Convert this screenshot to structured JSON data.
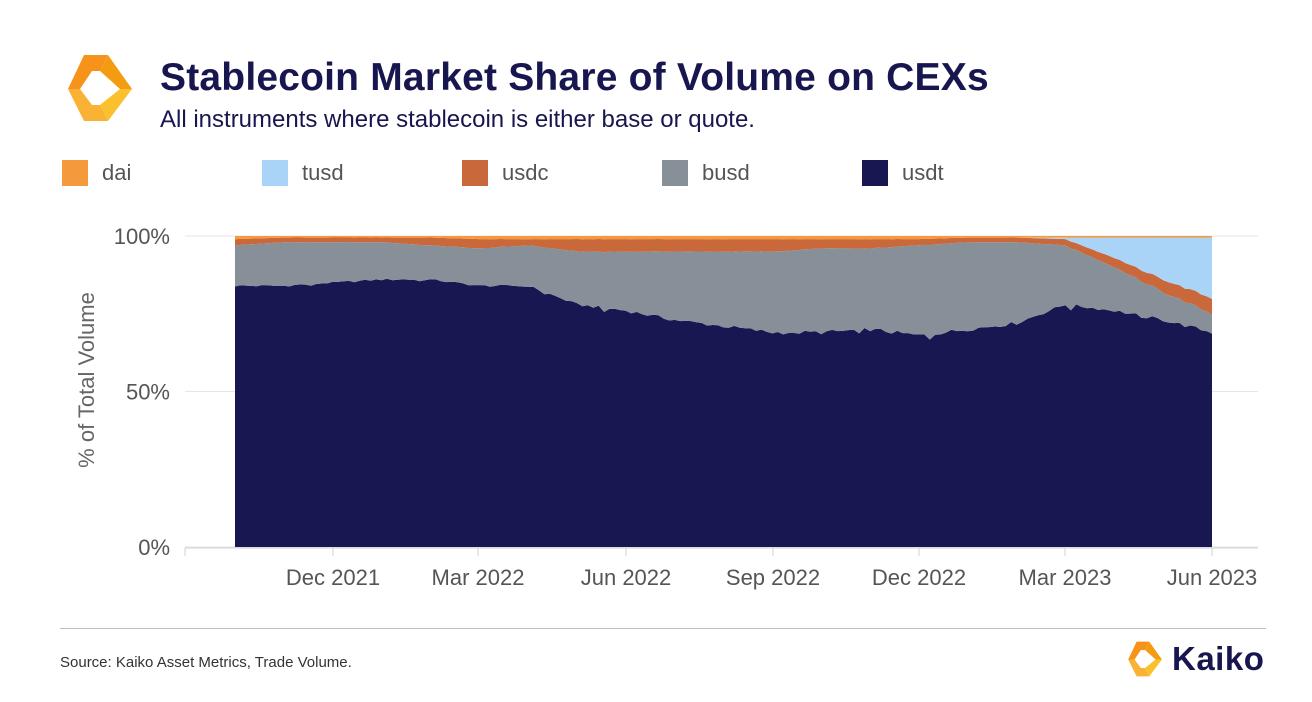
{
  "header": {
    "title": "Stablecoin Market Share of Volume on CEXs",
    "subtitle": "All instruments where stablecoin is either base or quote."
  },
  "footer": {
    "source": "Source: Kaiko Asset Metrics, Trade Volume.",
    "brand": "Kaiko"
  },
  "colors": {
    "dai": "#f59a3c",
    "tusd": "#aad4f7",
    "usdc": "#c9683a",
    "busd": "#878f99",
    "usdt": "#181752",
    "brand_orange": "#f7931a",
    "title": "#17164f"
  },
  "chart_data": {
    "type": "area",
    "stacked": true,
    "normalized": true,
    "title": "Stablecoin Market Share of Volume on CEXs",
    "subtitle": "All instruments where stablecoin is either base or quote.",
    "xlabel": "",
    "ylabel": "% of Total Volume",
    "ylim": [
      0,
      100
    ],
    "yticks": [
      "0%",
      "50%",
      "100%"
    ],
    "xticks": [
      "Dec 2021",
      "Mar 2022",
      "Jun 2022",
      "Sep 2022",
      "Dec 2022",
      "Mar 2023",
      "Jun 2023"
    ],
    "grid": true,
    "legend_position": "top",
    "x": [
      "2021-10",
      "2021-11",
      "2021-12",
      "2022-01",
      "2022-02",
      "2022-03",
      "2022-04",
      "2022-05",
      "2022-06",
      "2022-07",
      "2022-08",
      "2022-09",
      "2022-10",
      "2022-11",
      "2022-12",
      "2023-01",
      "2023-02",
      "2023-03",
      "2023-04",
      "2023-05",
      "2023-06"
    ],
    "series": [
      {
        "name": "usdt",
        "values": [
          84,
          84,
          85,
          86,
          86,
          84,
          84,
          78,
          76,
          73,
          71,
          69,
          69,
          70,
          68,
          70,
          72,
          78,
          76,
          73,
          69
        ]
      },
      {
        "name": "busd",
        "values": [
          13,
          14,
          13,
          12,
          11,
          12,
          13,
          17,
          19,
          22,
          24,
          26,
          27,
          26,
          29,
          28,
          26,
          19,
          14,
          9,
          6
        ]
      },
      {
        "name": "usdc",
        "values": [
          2,
          1.5,
          1.5,
          1.5,
          2.5,
          3,
          2,
          4,
          4,
          4,
          4,
          4,
          3,
          3,
          2,
          1.5,
          1.5,
          2,
          3,
          4,
          5
        ]
      },
      {
        "name": "tusd",
        "values": [
          0,
          0,
          0,
          0,
          0,
          0,
          0,
          0,
          0,
          0,
          0,
          0,
          0,
          0,
          0,
          0,
          0,
          0.5,
          6.5,
          13.5,
          19.5
        ]
      },
      {
        "name": "dai",
        "values": [
          1,
          0.5,
          0.5,
          0.5,
          0.5,
          1,
          1,
          1,
          1,
          1,
          1,
          1,
          1,
          1,
          1,
          0.5,
          0.5,
          0.5,
          0.5,
          0.5,
          0.5
        ]
      }
    ]
  }
}
